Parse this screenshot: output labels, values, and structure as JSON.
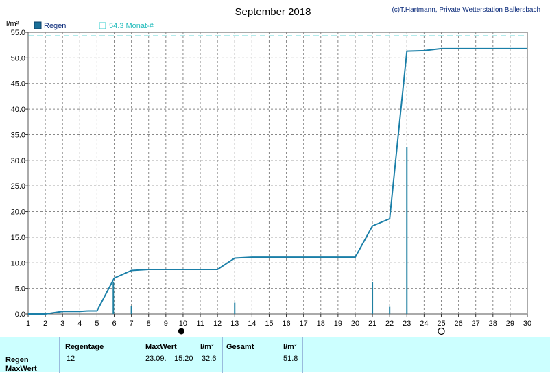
{
  "header": {
    "title": "September 2018",
    "copyright": "(c)T.Hartmann, Private Wetterstation Ballersbach",
    "unit": "l/m²"
  },
  "legend": {
    "series_label": "Regen",
    "reference_label": "54.3 Monat-#"
  },
  "colors": {
    "line": "#1a7fa8",
    "bars": "#1f7fa0",
    "reference": "#33cccc",
    "grid": "#888888",
    "footer_bg": "#ccffff"
  },
  "chart_data": {
    "type": "line",
    "title": "September 2018",
    "ylabel": "l/m²",
    "xlim": [
      1,
      30
    ],
    "ylim": [
      0,
      55
    ],
    "x_ticks": [
      "1",
      "2",
      "3",
      "4",
      "5",
      "6",
      "7",
      "8",
      "9",
      "10",
      "11",
      "12",
      "13",
      "14",
      "15",
      "16",
      "17",
      "18",
      "19",
      "20",
      "21",
      "22",
      "23",
      "24",
      "25",
      "26",
      "27",
      "28",
      "29",
      "30"
    ],
    "y_ticks": [
      "0.0",
      "5.0",
      "10.0",
      "15.0",
      "20.0",
      "25.0",
      "30.0",
      "35.0",
      "40.0",
      "45.0",
      "50.0",
      "55.0"
    ],
    "grid": true,
    "legend_position": "top-left",
    "reference_line": {
      "label": "54.3 Monat-#",
      "value": 54.3
    },
    "series": [
      {
        "name": "Regen",
        "kind": "cumulative_line",
        "points": [
          [
            1,
            0.0
          ],
          [
            2,
            0.0
          ],
          [
            3,
            0.5
          ],
          [
            4,
            0.5
          ],
          [
            4.5,
            0.6
          ],
          [
            5,
            0.6
          ],
          [
            6,
            7.0
          ],
          [
            7,
            8.5
          ],
          [
            8,
            8.7
          ],
          [
            9,
            8.7
          ],
          [
            10,
            8.7
          ],
          [
            11,
            8.7
          ],
          [
            12,
            8.7
          ],
          [
            13,
            10.9
          ],
          [
            14,
            11.1
          ],
          [
            15,
            11.1
          ],
          [
            16,
            11.1
          ],
          [
            17,
            11.1
          ],
          [
            18,
            11.1
          ],
          [
            19,
            11.1
          ],
          [
            20,
            11.1
          ],
          [
            21,
            17.2
          ],
          [
            22,
            18.6
          ],
          [
            23,
            51.3
          ],
          [
            24,
            51.4
          ],
          [
            25,
            51.8
          ],
          [
            26,
            51.8
          ],
          [
            27,
            51.8
          ],
          [
            28,
            51.8
          ],
          [
            29,
            51.8
          ],
          [
            30,
            51.8
          ]
        ]
      },
      {
        "name": "Regen",
        "kind": "daily_bars",
        "points": [
          [
            5.95,
            6.3
          ],
          [
            7,
            1.5
          ],
          [
            13,
            2.2
          ],
          [
            21,
            6.2
          ],
          [
            22,
            1.4
          ],
          [
            23,
            32.6
          ]
        ]
      }
    ],
    "markers": [
      {
        "x": 9.9,
        "symbol": "full-moon"
      },
      {
        "x": 25.0,
        "symbol": "new-moon"
      }
    ]
  },
  "footer": {
    "row_labels": [
      "Regen",
      "MaxWert"
    ],
    "regentage": {
      "header": "Regentage",
      "value": "12"
    },
    "maxwert": {
      "header": "MaxWert",
      "unit": "l/m²",
      "date": "23.09.",
      "time": "15:20",
      "value": "32.6"
    },
    "gesamt": {
      "header": "Gesamt",
      "unit": "l/m²",
      "value": "51.8"
    }
  }
}
